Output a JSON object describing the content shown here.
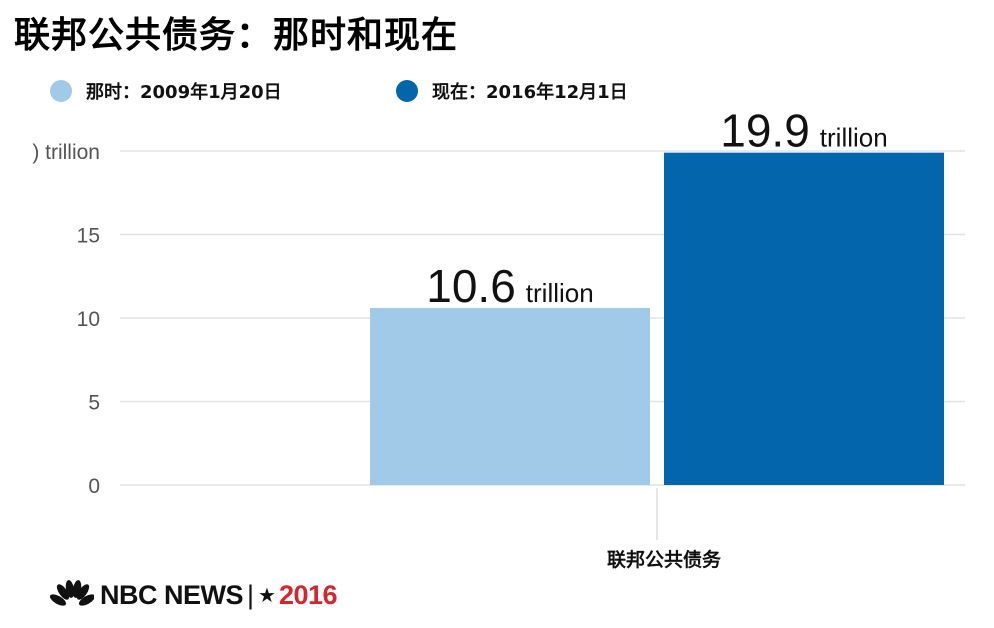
{
  "title": "联邦公共债务：那时和现在",
  "legend": [
    {
      "label": "那时：2009年1月20日",
      "color": "#a1c9e8"
    },
    {
      "label": "现在：2016年12月1日",
      "color": "#0366ac"
    }
  ],
  "chart_data": {
    "type": "bar",
    "title": "联邦公共债务：那时和现在",
    "categories": [
      "联邦公共债务"
    ],
    "series": [
      {
        "name": "那时：2009年1月20日",
        "values": [
          10.6
        ],
        "color": "#a1c9e8",
        "label_value": "10.6",
        "label_unit": "trillion"
      },
      {
        "name": "现在：2016年12月1日",
        "values": [
          19.9
        ],
        "color": "#0366ac",
        "label_value": "19.9",
        "label_unit": "trillion"
      }
    ],
    "y_ticks": [
      "0",
      "5",
      "10",
      "15",
      ") trillion"
    ],
    "y_tick_values": [
      0,
      5,
      10,
      15,
      20
    ],
    "ylim": [
      0,
      20
    ],
    "grid": true,
    "legend_position": "top-left",
    "xlabel": "",
    "ylabel": ""
  },
  "logo": {
    "brand": "NBC NEWS",
    "separator": "|",
    "star": "★",
    "year": "2016"
  }
}
